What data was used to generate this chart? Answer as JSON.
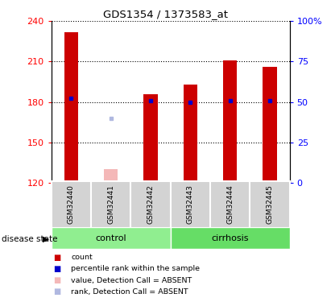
{
  "title": "GDS1354 / 1373583_at",
  "samples": [
    "GSM32440",
    "GSM32441",
    "GSM32442",
    "GSM32443",
    "GSM32444",
    "GSM32445"
  ],
  "ylim_left": [
    120,
    240
  ],
  "ylim_right": [
    0,
    100
  ],
  "yticks_left": [
    120,
    150,
    180,
    210,
    240
  ],
  "yticks_right": [
    0,
    25,
    50,
    75,
    100
  ],
  "ytick_right_labels": [
    "0",
    "25",
    "50",
    "75",
    "100%"
  ],
  "bar_values": [
    232,
    null,
    186,
    193,
    211,
    206
  ],
  "bar_color_present": "#cc0000",
  "bar_bottom": 120,
  "percentile_rank_values": [
    183,
    null,
    181,
    180,
    181,
    181
  ],
  "percentile_rank_color": "#0000cc",
  "absent_value_bar": [
    null,
    130,
    null,
    null,
    null,
    null
  ],
  "absent_rank_value": [
    null,
    168,
    null,
    null,
    null,
    null
  ],
  "absent_rank_color": "#b0b8e0",
  "absent_bar_color": "#f4b8b8",
  "label_bg_color": "#d3d3d3",
  "bar_width": 0.35,
  "control_color": "#90ee90",
  "cirrhosis_color": "#66dd66"
}
